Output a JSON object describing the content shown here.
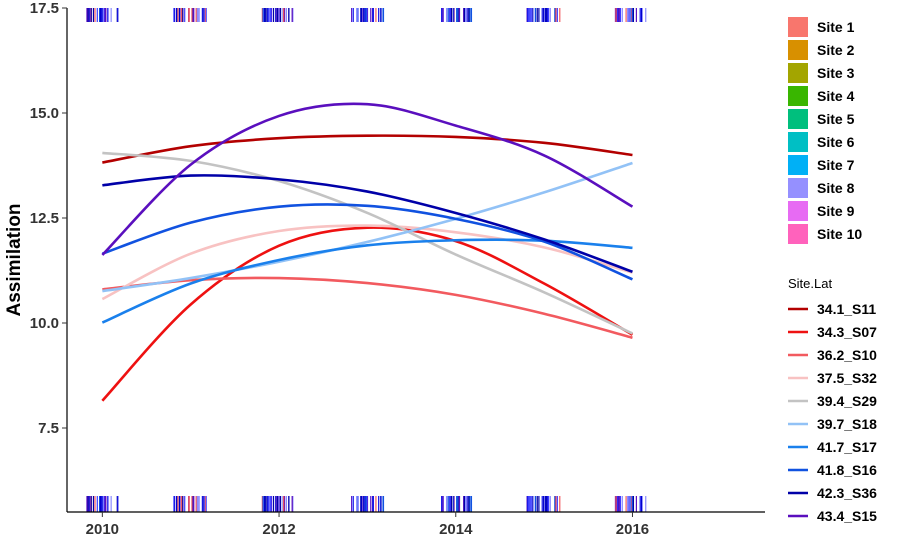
{
  "chart_data": {
    "type": "line",
    "title": "",
    "xlabel": "",
    "ylabel": "Assimilation",
    "xlim": [
      2009.6,
      2017.5
    ],
    "ylim": [
      5.5,
      17.5
    ],
    "x_ticks": [
      2010,
      2012,
      2014,
      2016
    ],
    "x_tick_labels": [
      "2010",
      "2012",
      "2014",
      "2016"
    ],
    "y_ticks": [
      7.5,
      10.0,
      12.5,
      15.0,
      17.5
    ],
    "y_tick_labels": [
      "7.5",
      "10.0",
      "12.5",
      "15.0",
      "17.5"
    ],
    "grid": false,
    "x": [
      2010,
      2011,
      2012,
      2013,
      2014,
      2015,
      2016
    ],
    "series": [
      {
        "name": "34.1_S11",
        "color": "#B30000",
        "values": [
          13.82,
          14.21,
          14.4,
          14.46,
          14.43,
          14.29,
          14.0
        ]
      },
      {
        "name": "34.3_S07",
        "color": "#EE1111",
        "values": [
          8.15,
          10.44,
          11.84,
          12.27,
          11.95,
          10.94,
          9.72
        ]
      },
      {
        "name": "36.2_S10",
        "color": "#F25A5F",
        "values": [
          10.8,
          11.02,
          11.07,
          10.95,
          10.67,
          10.22,
          9.65
        ]
      },
      {
        "name": "37.5_S32",
        "color": "#F8C2C2",
        "values": [
          10.57,
          11.65,
          12.19,
          12.32,
          12.16,
          11.8,
          11.2
        ]
      },
      {
        "name": "39.4_S29",
        "color": "#C3C3C3",
        "values": [
          14.05,
          13.86,
          13.38,
          12.62,
          11.63,
          10.73,
          9.75
        ]
      },
      {
        "name": "39.7_S18",
        "color": "#92C2F6",
        "values": [
          10.76,
          11.07,
          11.46,
          11.93,
          12.48,
          13.11,
          13.81
        ]
      },
      {
        "name": "41.7_S17",
        "color": "#1A80EC",
        "values": [
          10.01,
          10.94,
          11.5,
          11.85,
          11.97,
          11.96,
          11.79
        ]
      },
      {
        "name": "41.8_S16",
        "color": "#1152E0",
        "values": [
          11.65,
          12.39,
          12.77,
          12.79,
          12.48,
          11.94,
          11.04
        ]
      },
      {
        "name": "42.3_S36",
        "color": "#0000A8",
        "values": [
          13.28,
          13.51,
          13.42,
          13.13,
          12.62,
          11.99,
          11.22
        ]
      },
      {
        "name": "43.4_S15",
        "color": "#5A0FBE",
        "values": [
          11.62,
          13.77,
          14.93,
          15.21,
          14.7,
          13.99,
          12.77
        ]
      }
    ],
    "rug_groups": [
      2010,
      2011,
      2012,
      2013,
      2014,
      2015,
      2016
    ],
    "legend_placement": "right",
    "fill_legend": [
      {
        "label": "Site 1",
        "color": "#F8766D"
      },
      {
        "label": "Site 2",
        "color": "#D89000"
      },
      {
        "label": "Site 3",
        "color": "#A3A500"
      },
      {
        "label": "Site 4",
        "color": "#39B600"
      },
      {
        "label": "Site 5",
        "color": "#00BF7D"
      },
      {
        "label": "Site 6",
        "color": "#00BFC4"
      },
      {
        "label": "Site 7",
        "color": "#00B0F6"
      },
      {
        "label": "Site 8",
        "color": "#9590FF"
      },
      {
        "label": "Site 9",
        "color": "#E76BF3"
      },
      {
        "label": "Site 10",
        "color": "#FF62BC"
      }
    ],
    "line_legend_title": "Site.Lat"
  }
}
